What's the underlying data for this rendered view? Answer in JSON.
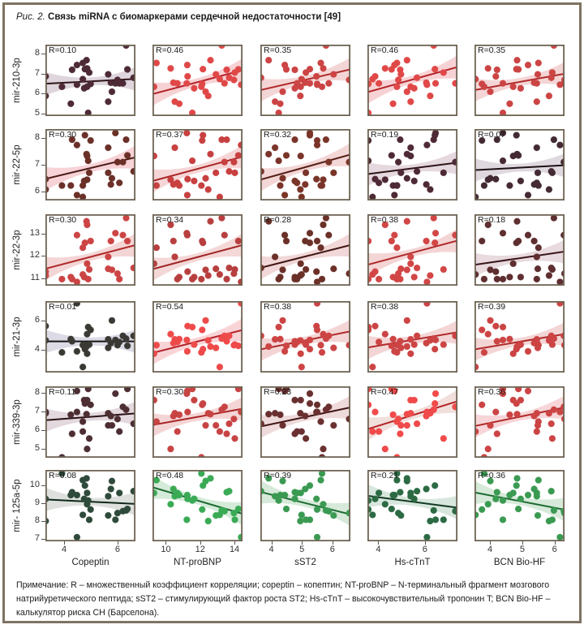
{
  "figure": {
    "fig_number": "Рис. 2.",
    "title": "Связь miRNA с биомаркерами сердечной недостаточности [49]",
    "note": "Примечание: R – множественный коэффициент корреляции; copeptin – копептин; NT-proBNP – N-терминальный фрагмент мозгового натрийуретического пептида; sST2 – стимулирующий фактор роста ST2; Hs-cTnT – высокочувствительный тропонин T; BCN Bio-HF – калькулятор риска СН (Барселона)."
  },
  "chart_data": {
    "type": "scatter",
    "layout": "grid 6 rows x 5 columns, linear fit with confidence band",
    "columns": [
      {
        "label": "Copeptin",
        "key": "copeptin",
        "range": [
          3.3,
          6.67
        ],
        "ticks": [
          4,
          6
        ]
      },
      {
        "label": "NT-proBNP",
        "key": "nt_probnp",
        "range": [
          9.22,
          14.47
        ],
        "ticks": [
          10,
          12,
          14
        ]
      },
      {
        "label": "sST2",
        "key": "sst2",
        "range": [
          3.64,
          6.59
        ],
        "ticks": [
          4,
          5,
          6
        ]
      },
      {
        "label": "Hs-cTnT",
        "key": "hs_ctnt",
        "range": [
          3.53,
          7.4
        ],
        "ticks": [
          4,
          6
        ]
      },
      {
        "label": "BCN Bio-HF",
        "key": "bcn_biohf",
        "range": [
          3.52,
          6.31
        ],
        "ticks": [
          4,
          5,
          6
        ]
      }
    ],
    "rows": [
      {
        "label": "mir-210-3p",
        "key": "mir_210_3p",
        "range": [
          4.88,
          8.46
        ],
        "ticks": [
          5,
          6,
          7,
          8
        ]
      },
      {
        "label": "mir-22-5p",
        "key": "mir_22_5p",
        "range": [
          5.67,
          8.35
        ],
        "ticks": [
          6,
          7,
          8
        ]
      },
      {
        "label": "mir-22-3p",
        "key": "mir_22_3p",
        "range": [
          10.65,
          13.9
        ],
        "ticks": [
          11,
          12,
          13
        ]
      },
      {
        "label": "mir-21-3p",
        "key": "mir_21_3p",
        "range": [
          2.44,
          7.33
        ],
        "ticks": [
          4,
          6
        ]
      },
      {
        "label": "mir-339-3p",
        "key": "mir_339_3p",
        "range": [
          4.53,
          8.35
        ],
        "ticks": [
          5,
          6,
          7,
          8
        ]
      },
      {
        "label": "mir- 125a-5p",
        "key": "mir_125a_5p",
        "range": [
          6.87,
          10.84
        ],
        "ticks": [
          7,
          8,
          9,
          10
        ]
      }
    ],
    "patients": {
      "copeptin": [
        3.31,
        3.31,
        3.92,
        4.25,
        4.3,
        4.48,
        4.48,
        4.7,
        4.7,
        4.75,
        4.78,
        4.84,
        4.86,
        4.86,
        4.9,
        4.94,
        4.99,
        5.65,
        5.65,
        5.75,
        5.79,
        5.92,
        6.0,
        6.07,
        6.2,
        6.32,
        6.37,
        6.6
      ],
      "nt_probnp": [
        11.27,
        12.47,
        12.07,
        10.78,
        13.55,
        11.25,
        14.39,
        9.45,
        13.14,
        11.65,
        12.16,
        12.6,
        9.31,
        10.28,
        11.54,
        14.02,
        12.12,
        10.52,
        12.92,
        10.44,
        12.32,
        11.22,
        13.97,
        10.67,
        13.42,
        13.26,
        14.23,
        13.69
      ],
      "sst2": [
        5.48,
        4.95,
        5.66,
        4.29,
        4.77,
        4.44,
        5.5,
        5.62,
        4.99,
        4.77,
        5.26,
        3.91,
        4.96,
        5.7,
        4.24,
        5.13,
        5.5,
        4.12,
        6.04,
        5.11,
        4.37,
        5.26,
        6.55,
        4.84,
        5.88,
        5.79,
        4.49,
        3.66
      ],
      "hs_ctnt": [
        3.86,
        6.23,
        4.8,
        4.63,
        4.94,
        4.69,
        6.09,
        4.8,
        3.75,
        5.54,
        6.43,
        5.23,
        5.39,
        4.29,
        3.57,
        6.8,
        3.57,
        5.39,
        4.97,
        6.06,
        5.23,
        6.46,
        4.86,
        4.02,
        7.31,
        6.38,
        4.57,
        5.66
      ],
      "bcn_biohf": [
        4.18,
        5.83,
        3.82,
        4.61,
        4.22,
        5.18,
        6.17,
        5.5,
        3.55,
        4.95,
        4.82,
        4.84,
        4.72,
        3.94,
        4.4,
        5.93,
        3.75,
        5.45,
        5.48,
        5.37,
        4.01,
        4.4,
        6.31,
        5.45,
        6.29,
        5.98,
        4.88,
        5.9
      ],
      "mir_210_3p": [
        6.87,
        5.89,
        6.35,
        5.5,
        7.2,
        7.44,
        6.45,
        7.54,
        6.73,
        6.27,
        7.23,
        7.68,
        6.35,
        7.27,
        5.04,
        7.06,
        6.49,
        5.6,
        6.97,
        6.55,
        6.1,
        6.52,
        6.69,
        6.52,
        6.52,
        8.42,
        7.22,
        6.8
      ],
      "mir_22_5p": [
        6.47,
        6.08,
        6.23,
        6.23,
        7.95,
        5.87,
        7.75,
        6.23,
        5.8,
        6.4,
        8.12,
        7.41,
        7.34,
        6.45,
        7.16,
        6.71,
        7.92,
        7.65,
        6.71,
        6.27,
        6.5,
        8.2,
        7.11,
        6.33,
        7.11,
        7.95,
        7.36,
        6.76
      ],
      "mir_22_3p": [
        11.29,
        11.11,
        10.95,
        11.04,
        10.95,
        12.95,
        10.82,
        12.38,
        11.16,
        11.04,
        12.6,
        13.58,
        11.65,
        13.42,
        10.95,
        11.39,
        12.68,
        11.96,
        11.42,
        12.68,
        11.37,
        13.04,
        11.2,
        10.95,
        12.95,
        13.73,
        12.68,
        11.46
      ],
      "mir_21_3p": [
        5.62,
        4.64,
        3.82,
        4.73,
        4.58,
        3.89,
        7.18,
        4.31,
        2.82,
        4.35,
        4.04,
        4.22,
        3.73,
        5.07,
        5.55,
        4.35,
        5.36,
        4.71,
        4.13,
        4.45,
        6.0,
        4.67,
        4.31,
        4.53,
        4.95,
        4.76,
        4.27,
        4.95
      ],
      "mir_339_3p": [
        6.98,
        6.91,
        4.55,
        6.83,
        5.81,
        8.1,
        6.98,
        6.46,
        5.93,
        7.61,
        7.43,
        6.86,
        7.61,
        5.0,
        8.21,
        5.56,
        7.36,
        6.91,
        6.26,
        6.76,
        6.26,
        7.96,
        6.6,
        5.93,
        7.25,
        7.1,
        8.21,
        6.35
      ],
      "mir_125a_5p": [
        9.23,
        8.0,
        10.64,
        9.44,
        9.6,
        9.44,
        7.1,
        10.27,
        8.34,
        9.23,
        9.97,
        10.37,
        9.56,
        8.93,
        9.14,
        8.07,
        8.64,
        9.38,
        8.31,
        9.78,
        10.22,
        8.07,
        8.44,
        9.56,
        8.55,
        8.59,
        8.67,
        9.66
      ]
    },
    "panels": [
      [
        {
          "r_label": "R=0.10",
          "fit": [
            6.5,
            6.74
          ],
          "color": "#4d2a35",
          "line": "#2e1418",
          "band": "#dcd2d9"
        },
        {
          "r_label": "R=0.46",
          "fit": [
            5.98,
            7.18
          ],
          "color": "#e04848",
          "line": "#b42428",
          "band": "#f6cdd0"
        },
        {
          "r_label": "R=0.35",
          "fit": [
            6.18,
            7.22
          ],
          "color": "#cc4444",
          "line": "#b02a2a",
          "band": "#f3d0d0"
        },
        {
          "r_label": "R=0.46",
          "fit": [
            6.08,
            7.34
          ],
          "color": "#e04848",
          "line": "#b42428",
          "band": "#f6cdd0"
        },
        {
          "r_label": "R=0.35",
          "fit": [
            6.18,
            7.0
          ],
          "color": "#cc4444",
          "line": "#b02a2a",
          "band": "#f3d0d0"
        }
      ],
      [
        {
          "r_label": "R=0.30",
          "fit": [
            6.48,
            7.29
          ],
          "color": "#6b3028",
          "line": "#4a1a14",
          "band": "#f6cdd3"
        },
        {
          "r_label": "R=0.37",
          "fit": [
            6.4,
            7.31
          ],
          "color": "#c84040",
          "line": "#a82424",
          "band": "#f5d0d2"
        },
        {
          "r_label": "R=0.32",
          "fit": [
            6.45,
            7.39
          ],
          "color": "#7a3428",
          "line": "#561e16",
          "band": "#f2d2d2"
        },
        {
          "r_label": "R=0.19",
          "fit": [
            6.66,
            7.09
          ],
          "color": "#4e2a35",
          "line": "#2e1418",
          "band": "#e2d4da"
        },
        {
          "r_label": "R=0.07",
          "fit": [
            6.81,
            6.99
          ],
          "color": "#442a33",
          "line": "#1e1014",
          "band": "#dcd5dc"
        }
      ],
      [
        {
          "r_label": "R=0.30",
          "fit": [
            11.42,
            12.5
          ],
          "color": "#cc4444",
          "line": "#b02a2a",
          "band": "#f3d0d0"
        },
        {
          "r_label": "R=0.34",
          "fit": [
            11.4,
            12.5
          ],
          "color": "#b83f3f",
          "line": "#a02424",
          "band": "#f3d3d3"
        },
        {
          "r_label": "R=0.28",
          "fit": [
            11.46,
            12.5
          ],
          "color": "#6b3028",
          "line": "#3e1410",
          "band": "#efd3d3"
        },
        {
          "r_label": "R=0.38",
          "fit": [
            11.6,
            12.7
          ],
          "color": "#d24646",
          "line": "#b02a2a",
          "band": "#f3d0d0"
        },
        {
          "r_label": "R=0.18",
          "fit": [
            11.6,
            12.2
          ],
          "color": "#5e2e30",
          "line": "#3a161a",
          "band": "#e6d6da"
        }
      ],
      [
        {
          "r_label": "R=0.01",
          "fit": [
            4.57,
            4.57
          ],
          "color": "#3b3934",
          "line": "#141414",
          "band": "#d8d6e2"
        },
        {
          "r_label": "R=0.54",
          "fit": [
            3.78,
            5.35
          ],
          "color": "#ee4a4a",
          "line": "#b42428",
          "band": "#f8cfd3"
        },
        {
          "r_label": "R=0.38",
          "fit": [
            4.02,
            5.26
          ],
          "color": "#cc4444",
          "line": "#b02a2a",
          "band": "#f3d0d0"
        },
        {
          "r_label": "R=0.38",
          "fit": [
            4.15,
            5.2
          ],
          "color": "#cc4444",
          "line": "#b02a2a",
          "band": "#f3d0d0"
        },
        {
          "r_label": "R=0.39",
          "fit": [
            4.02,
            5.07
          ],
          "color": "#cc4444",
          "line": "#b02a2a",
          "band": "#f3d0d0"
        }
      ],
      [
        {
          "r_label": "R=0.11",
          "fit": [
            6.54,
            6.9
          ],
          "color": "#4d2e33",
          "line": "#2a1216",
          "band": "#dfd4da"
        },
        {
          "r_label": "R=0.30",
          "fit": [
            6.28,
            7.15
          ],
          "color": "#c84444",
          "line": "#a82424",
          "band": "#f3d0d0"
        },
        {
          "r_label": "R=0.23",
          "fit": [
            6.2,
            7.22
          ],
          "color": "#6a3030",
          "line": "#3e1412",
          "band": "#ecd6d6"
        },
        {
          "r_label": "R=0.47",
          "fit": [
            6.06,
            7.55
          ],
          "color": "#f04a4a",
          "line": "#b42428",
          "band": "#efdcd8"
        },
        {
          "r_label": "R=0.36",
          "fit": [
            6.22,
            7.22
          ],
          "color": "#cc4444",
          "line": "#b02a2a",
          "band": "#f6d0d4"
        }
      ],
      [
        {
          "r_label": "R=0.08",
          "fit": [
            9.2,
            8.95
          ],
          "color": "#2e4a3a",
          "line": "#10281a",
          "band": "#d9ddd9"
        },
        {
          "r_label": "R=0.48",
          "fit": [
            9.88,
            8.4
          ],
          "color": "#3aaa55",
          "line": "#1c6a30",
          "band": "#d0e9d5"
        },
        {
          "r_label": "R=0.39",
          "fit": [
            9.62,
            8.37
          ],
          "color": "#3a9a52",
          "line": "#1c6a30",
          "band": "#d3e8d6"
        },
        {
          "r_label": "R=0.21",
          "fit": [
            9.4,
            8.74
          ],
          "color": "#2c6a44",
          "line": "#123a22",
          "band": "#d4e4da"
        },
        {
          "r_label": "R=0.36",
          "fit": [
            9.59,
            8.63
          ],
          "color": "#3a9a52",
          "line": "#1c6a30",
          "band": "#d3e8d6"
        }
      ]
    ]
  }
}
